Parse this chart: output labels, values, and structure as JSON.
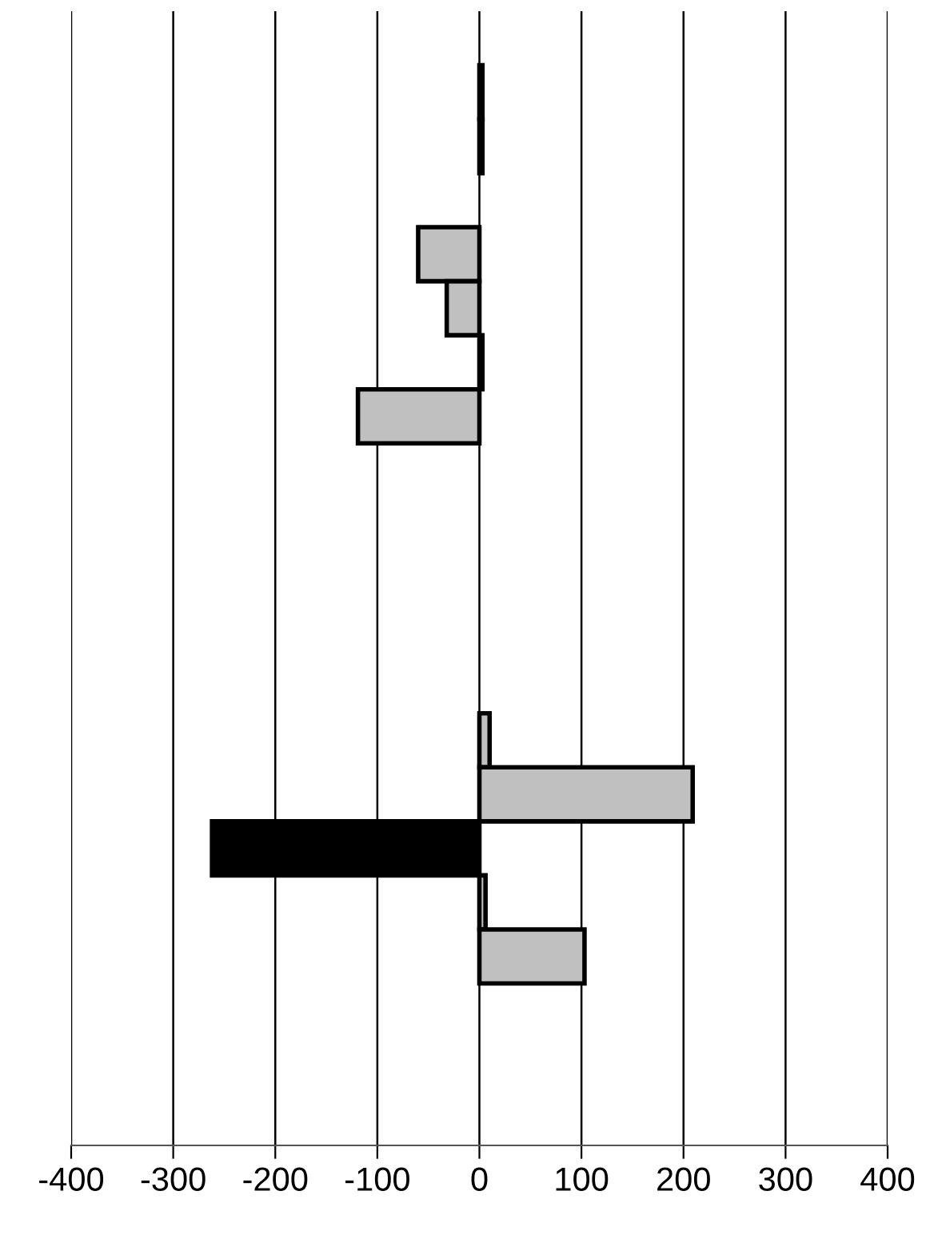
{
  "chart_data": {
    "type": "bar",
    "orientation": "horizontal",
    "categories": [
      null,
      null,
      null,
      null,
      null,
      null,
      null,
      null,
      null,
      null,
      null,
      null,
      null,
      null,
      null,
      null,
      null,
      null,
      null,
      null,
      null
    ],
    "values": [
      null,
      3,
      3,
      null,
      -60,
      -32,
      3,
      -119,
      null,
      null,
      null,
      null,
      null,
      10,
      209,
      -262,
      6,
      103,
      null,
      null,
      null
    ],
    "colors": [
      "#c0c0c0",
      "#000000",
      "#000000",
      "#c0c0c0",
      "#c0c0c0",
      "#c0c0c0",
      "#c0c0c0",
      "#c0c0c0",
      "#c0c0c0",
      "#c0c0c0",
      "#c0c0c0",
      "#c0c0c0",
      "#c0c0c0",
      "#c0c0c0",
      "#c0c0c0",
      "#000000",
      "#c0c0c0",
      "#c0c0c0",
      "#c0c0c0",
      "#c0c0c0",
      "#c0c0c0"
    ],
    "xlim": [
      -400,
      400
    ],
    "xticks": [
      -400,
      -300,
      -200,
      -100,
      0,
      100,
      200,
      300,
      400
    ],
    "grid": "x",
    "tick_labels": "x"
  }
}
